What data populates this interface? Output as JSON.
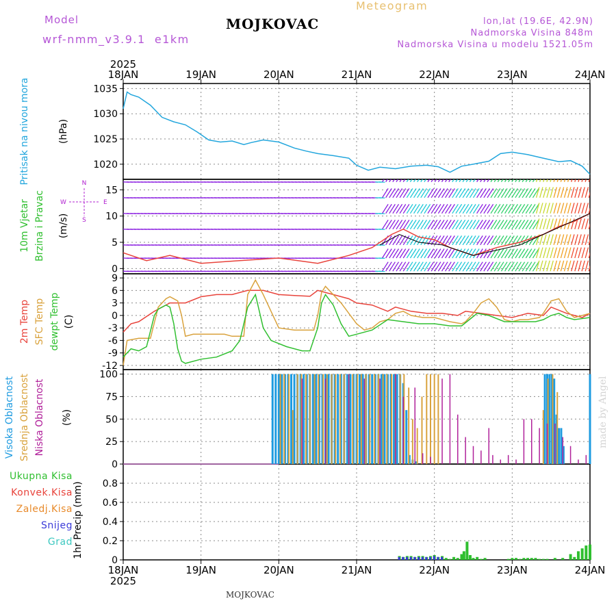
{
  "header": {
    "model_label": "Model",
    "model_name": "wrf-nmm_v3.9.1  e1km",
    "station": "MOJKOVAC",
    "product": "Meteogram",
    "coords": "lon,lat (19.6E, 42.9N)",
    "altitude": "Nadmorska Visina 848m",
    "model_altitude": "Nadmorska Visina u modelu 1521.05m",
    "footer_station": "MOJKOVAC",
    "credit": "made by Angel"
  },
  "colors": {
    "pressure": "#22a6dd",
    "temp_2m": "#e8423a",
    "temp_sfc": "#d9a23c",
    "dewpoint": "#2fbf2f",
    "cloud_high": "#1e9be0",
    "cloud_mid": "#d9a23c",
    "cloud_low": "#b0209a",
    "precip_total": "#2fbf2f",
    "precip_conv": "#e8423a",
    "precip_frz": "#e88a2a",
    "precip_snow": "#3a3ad8",
    "precip_grad": "#3cc8c0",
    "wind_label": "#b020d0",
    "wind_gust": "#e8423a"
  },
  "chart_data": [
    {
      "type": "line",
      "panel": "pressure",
      "ylabel": [
        "Pritisak na nivou mora",
        "(hPa)"
      ],
      "top_year": "2025",
      "x_tick_labels": [
        "18JAN",
        "19JAN",
        "20JAN",
        "21JAN",
        "22JAN",
        "23JAN",
        "24JAN"
      ],
      "ylim": [
        1017,
        1036
      ],
      "yticks": [
        1020,
        1025,
        1030,
        1035
      ],
      "series": [
        {
          "x": [
            0,
            0.05,
            0.1,
            0.2,
            0.35,
            0.5,
            0.65,
            0.8,
            0.95,
            1.1,
            1.25,
            1.4,
            1.55,
            1.65,
            1.8,
            2.0,
            2.2,
            2.35,
            2.5,
            2.7,
            2.9,
            3.0,
            3.15,
            3.3,
            3.5,
            3.7,
            3.9,
            4.05,
            4.2,
            4.35,
            4.5,
            4.7,
            4.85,
            5.0,
            5.2,
            5.4,
            5.6,
            5.75,
            5.9,
            6.0
          ],
          "y": [
            1031,
            1034.3,
            1033.8,
            1033.3,
            1031.7,
            1029.3,
            1028.4,
            1027.8,
            1026.4,
            1024.8,
            1024.4,
            1024.6,
            1023.9,
            1024.3,
            1024.8,
            1024.4,
            1023.2,
            1022.6,
            1022.1,
            1021.7,
            1021.2,
            1019.8,
            1018.8,
            1019.4,
            1019.1,
            1019.6,
            1019.8,
            1019.5,
            1018.4,
            1019.6,
            1020.0,
            1020.6,
            1022.1,
            1022.4,
            1021.9,
            1021.2,
            1020.5,
            1020.7,
            1019.6,
            1018.0
          ]
        }
      ]
    },
    {
      "type": "line",
      "panel": "wind",
      "ylabel": [
        "10m Vjetar",
        "Brzina i Pravac",
        "(m/s)"
      ],
      "compass": [
        "N",
        "S",
        "W",
        "E"
      ],
      "ylim": [
        -1,
        17
      ],
      "yticks": [
        0,
        5,
        10,
        15
      ],
      "series": [
        {
          "name": "gust",
          "x": [
            0,
            0.3,
            0.6,
            1.0,
            1.5,
            2.0,
            2.5,
            2.9,
            3.2,
            3.45,
            3.6,
            3.8,
            4.0,
            4.2,
            4.5,
            4.8,
            5.1,
            5.4,
            5.6,
            5.8,
            6.0
          ],
          "y": [
            3.0,
            1.5,
            2.5,
            1.0,
            1.5,
            2.0,
            1.0,
            2.5,
            4.0,
            6.5,
            7.5,
            6.0,
            5.5,
            4.0,
            2.5,
            4.0,
            5.0,
            6.5,
            8.0,
            9.0,
            10.5
          ]
        },
        {
          "name": "speed",
          "x": [
            3.3,
            3.55,
            3.8,
            4.1,
            4.5,
            4.8,
            5.1,
            5.4,
            5.7,
            6.0
          ],
          "y": [
            4.5,
            6.5,
            5.0,
            4.5,
            2.5,
            3.5,
            4.5,
            6.5,
            8.5,
            10.5
          ]
        }
      ]
    },
    {
      "type": "line",
      "panel": "temperature",
      "ylabel": [
        "2m Temp",
        "SFC Temp",
        "dewpt Temp",
        "(C)"
      ],
      "ylim": [
        -13,
        10
      ],
      "yticks": [
        -12,
        -9,
        -6,
        -3,
        0,
        3,
        6,
        9
      ],
      "series": [
        {
          "name": "2m Temp",
          "x": [
            0,
            0.1,
            0.2,
            0.4,
            0.6,
            0.8,
            1.0,
            1.2,
            1.4,
            1.6,
            1.8,
            2.0,
            2.2,
            2.4,
            2.5,
            2.7,
            2.9,
            3.0,
            3.2,
            3.4,
            3.5,
            3.7,
            3.9,
            4.1,
            4.3,
            4.4,
            4.6,
            4.8,
            5.0,
            5.2,
            5.4,
            5.5,
            5.7,
            5.9,
            6.0
          ],
          "y": [
            -4,
            -2,
            -1.5,
            1,
            3,
            3,
            4.5,
            5,
            5,
            6,
            6,
            5,
            4.8,
            4.6,
            6,
            5,
            4,
            3,
            2.5,
            1,
            2,
            1,
            0.5,
            0.5,
            0,
            1,
            0.5,
            0,
            -0.5,
            0.5,
            0,
            2,
            0.5,
            -0.5,
            0.5
          ]
        },
        {
          "name": "SFC Temp",
          "x": [
            0,
            0.05,
            0.2,
            0.35,
            0.45,
            0.55,
            0.6,
            0.7,
            0.75,
            0.8,
            0.9,
            1.1,
            1.3,
            1.4,
            1.55,
            1.6,
            1.7,
            1.8,
            2.0,
            2.2,
            2.3,
            2.45,
            2.5,
            2.55,
            2.6,
            2.8,
            3.0,
            3.1,
            3.2,
            3.3,
            3.4,
            3.5,
            3.6,
            3.7,
            3.85,
            4.0,
            4.2,
            4.35,
            4.4,
            4.5,
            4.6,
            4.7,
            4.8,
            4.9,
            5.0,
            5.1,
            5.2,
            5.35,
            5.4,
            5.5,
            5.6,
            5.7,
            5.8,
            6.0
          ],
          "y": [
            -12,
            -6,
            -5.5,
            -5.5,
            2,
            4,
            4.5,
            3.5,
            0,
            -5,
            -4.5,
            -4.5,
            -4.5,
            -5,
            -5,
            5,
            8.5,
            5,
            -3,
            -3.5,
            -3.5,
            -3.5,
            0,
            5.5,
            7,
            3,
            -2,
            -3.5,
            -3,
            -1.5,
            -1,
            0.5,
            1,
            0,
            -0.5,
            -0.5,
            -1.5,
            -2,
            -1.5,
            0.5,
            3,
            4,
            2,
            -1,
            -1.5,
            -1,
            -1,
            -0.5,
            0.5,
            3.5,
            4,
            1,
            -0.5,
            0.5
          ]
        },
        {
          "name": "dewpt Temp",
          "x": [
            0,
            0.1,
            0.2,
            0.3,
            0.4,
            0.45,
            0.55,
            0.6,
            0.65,
            0.7,
            0.75,
            0.8,
            1.0,
            1.2,
            1.4,
            1.5,
            1.6,
            1.7,
            1.8,
            1.9,
            2.1,
            2.3,
            2.4,
            2.5,
            2.55,
            2.6,
            2.7,
            2.8,
            2.9,
            3.0,
            3.2,
            3.4,
            3.6,
            3.8,
            4.0,
            4.2,
            4.35,
            4.45,
            4.55,
            4.7,
            4.9,
            5.1,
            5.3,
            5.4,
            5.5,
            5.6,
            5.7,
            5.8,
            6.0
          ],
          "y": [
            -10,
            -8,
            -8.5,
            -7.5,
            0,
            1.5,
            2.5,
            2,
            -2,
            -8,
            -11,
            -11.5,
            -10.5,
            -10,
            -8.5,
            -6,
            2,
            5,
            -3,
            -6,
            -7.5,
            -8.5,
            -8.5,
            -3,
            3,
            5,
            2.5,
            -2,
            -5,
            -4.5,
            -3.5,
            -1,
            -1.5,
            -2,
            -2,
            -2.5,
            -2.5,
            -1,
            0.5,
            0,
            -1.5,
            -1.5,
            -1.5,
            -1,
            0,
            0.5,
            -0.5,
            -1,
            -0.5
          ]
        }
      ]
    },
    {
      "type": "bar",
      "panel": "cloud",
      "ylabel": [
        "Visoka Oblacnost",
        "Srednja Oblacnost",
        "Niska Oblacnost",
        "(%)"
      ],
      "ylim": [
        0,
        105
      ],
      "yticks": [
        0,
        25,
        50,
        75,
        100
      ],
      "series": [
        {
          "name": "Visoka Oblacnost",
          "x": [
            1.92,
            1.96,
            2.0,
            2.04,
            2.08,
            2.12,
            2.16,
            2.2,
            2.24,
            2.28,
            2.32,
            2.36,
            2.4,
            2.44,
            2.48,
            2.52,
            2.56,
            2.6,
            2.64,
            2.68,
            2.72,
            2.76,
            2.8,
            2.84,
            2.88,
            2.92,
            2.96,
            3.0,
            3.04,
            3.08,
            3.12,
            3.16,
            3.2,
            3.24,
            3.28,
            3.32,
            3.36,
            3.4,
            3.44,
            3.48,
            3.52,
            3.56,
            3.6,
            3.64,
            3.68,
            3.72,
            3.76,
            5.42,
            5.45,
            5.48,
            5.51,
            5.54,
            5.57,
            5.6,
            5.63,
            5.66,
            6.0
          ],
          "values": [
            100,
            100,
            100,
            100,
            100,
            100,
            100,
            100,
            100,
            100,
            100,
            100,
            100,
            100,
            100,
            100,
            100,
            100,
            100,
            100,
            100,
            100,
            100,
            100,
            100,
            100,
            100,
            100,
            100,
            100,
            100,
            100,
            100,
            100,
            100,
            100,
            100,
            100,
            100,
            100,
            100,
            100,
            90,
            60,
            10,
            5,
            3,
            100,
            100,
            100,
            100,
            95,
            55,
            40,
            40,
            20,
            100
          ]
        },
        {
          "name": "Srednja Oblacnost",
          "x": [
            2.02,
            2.07,
            2.13,
            2.18,
            2.24,
            2.29,
            2.35,
            2.4,
            2.46,
            2.51,
            2.57,
            2.62,
            2.68,
            2.73,
            2.79,
            2.84,
            2.9,
            2.95,
            3.01,
            3.06,
            3.12,
            3.17,
            3.23,
            3.28,
            3.34,
            3.39,
            3.45,
            3.5,
            3.56,
            3.61,
            3.67,
            3.72,
            3.78,
            3.84,
            3.9,
            3.95,
            4.0,
            4.05,
            5.4,
            5.46,
            5.52,
            5.58
          ],
          "values": [
            100,
            100,
            100,
            60,
            100,
            100,
            100,
            100,
            100,
            100,
            100,
            100,
            100,
            100,
            100,
            100,
            100,
            100,
            100,
            100,
            100,
            100,
            100,
            100,
            100,
            100,
            100,
            100,
            100,
            100,
            85,
            50,
            40,
            75,
            100,
            100,
            100,
            100,
            60,
            95,
            100,
            80
          ]
        },
        {
          "name": "Niska Oblacnost",
          "x": [
            2.3,
            2.6,
            2.9,
            3.1,
            3.3,
            3.5,
            3.6,
            3.75,
            3.85,
            3.95,
            4.1,
            4.2,
            4.3,
            4.4,
            4.5,
            4.6,
            4.7,
            4.75,
            4.85,
            4.95,
            5.05,
            5.15,
            5.25,
            5.35,
            5.45,
            5.55,
            5.65,
            5.75,
            5.85,
            5.95
          ],
          "values": [
            95,
            95,
            100,
            95,
            95,
            100,
            75,
            85,
            12,
            8,
            95,
            100,
            55,
            30,
            20,
            15,
            40,
            10,
            5,
            10,
            5,
            50,
            50,
            40,
            45,
            45,
            30,
            20,
            5,
            10
          ]
        }
      ]
    },
    {
      "type": "bar",
      "panel": "precipitation",
      "ylabel": [
        "1hr Precip (mm)"
      ],
      "legend": [
        "Ukupna Kisa",
        "Konvek.Kisa",
        "Zaledj.Kisa",
        "Snijeg",
        "Grad"
      ],
      "ylim": [
        0,
        1.0
      ],
      "yticks": [
        0,
        0.2,
        0.4,
        0.6,
        0.8
      ],
      "series": [
        {
          "name": "Ukupna Kisa",
          "x": [
            3.55,
            3.6,
            3.65,
            3.7,
            3.75,
            3.8,
            3.85,
            3.9,
            3.95,
            4.0,
            4.05,
            4.1,
            4.15,
            4.2,
            4.25,
            4.3,
            4.35,
            4.38,
            4.42,
            4.46,
            4.5,
            4.55,
            4.6,
            4.65,
            4.95,
            5.0,
            5.05,
            5.1,
            5.15,
            5.2,
            5.25,
            5.3,
            5.35,
            5.4,
            5.45,
            5.55,
            5.65,
            5.75,
            5.8,
            5.85,
            5.9,
            5.95,
            6.0
          ],
          "values": [
            0.04,
            0.03,
            0.04,
            0.04,
            0.03,
            0.04,
            0.04,
            0.03,
            0.04,
            0.05,
            0.03,
            0.04,
            0.02,
            0.01,
            0.03,
            0.02,
            0.06,
            0.09,
            0.19,
            0.05,
            0.02,
            0.03,
            0.01,
            0.02,
            0.01,
            0.02,
            0.02,
            0.01,
            0.02,
            0.02,
            0.02,
            0.02,
            0.01,
            0.01,
            0.01,
            0.02,
            0.02,
            0.06,
            0.03,
            0.09,
            0.12,
            0.15,
            0.16
          ]
        },
        {
          "name": "Snijeg",
          "x": [
            3.55,
            3.6,
            3.65,
            3.7,
            3.75,
            3.8,
            3.85,
            3.9,
            3.95,
            4.0,
            4.05,
            4.1
          ],
          "values": [
            0.03,
            0.03,
            0.03,
            0.03,
            0.03,
            0.03,
            0.03,
            0.03,
            0.03,
            0.04,
            0.03,
            0.03
          ]
        }
      ]
    }
  ]
}
